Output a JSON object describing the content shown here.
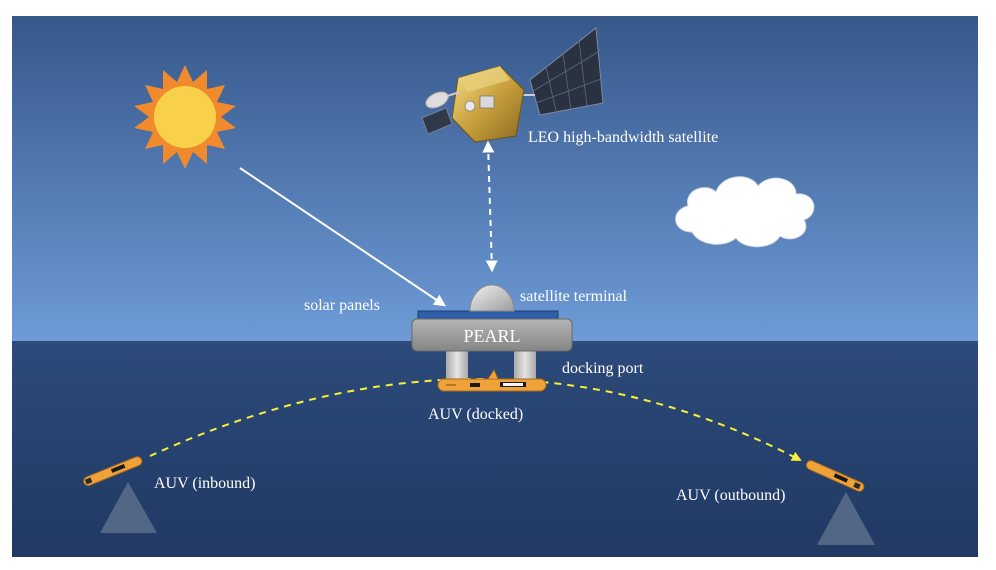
{
  "labels": {
    "satellite": "LEO high-bandwidth satellite",
    "solar_panels": "solar panels",
    "satellite_terminal": "satellite terminal",
    "platform": "PEARL",
    "docking_port": "docking port",
    "auv_docked": "AUV (docked)",
    "auv_inbound": "AUV (inbound)",
    "auv_outbound": "AUV (outbound)"
  },
  "colors": {
    "sky_top": "#35578a",
    "sky_bottom": "#6f9bd6",
    "sea_top": "#2c4a7a",
    "sea_bottom": "#213a65",
    "sun_core": "#f9d04a",
    "sun_rays": "#f08a2c",
    "auv_body": "#f0a23a",
    "trajectory": "#f5f03a",
    "link_arrow": "#ffffff",
    "platform_gray": "#9a9a9a",
    "pyramid": "#5b6e8c"
  }
}
